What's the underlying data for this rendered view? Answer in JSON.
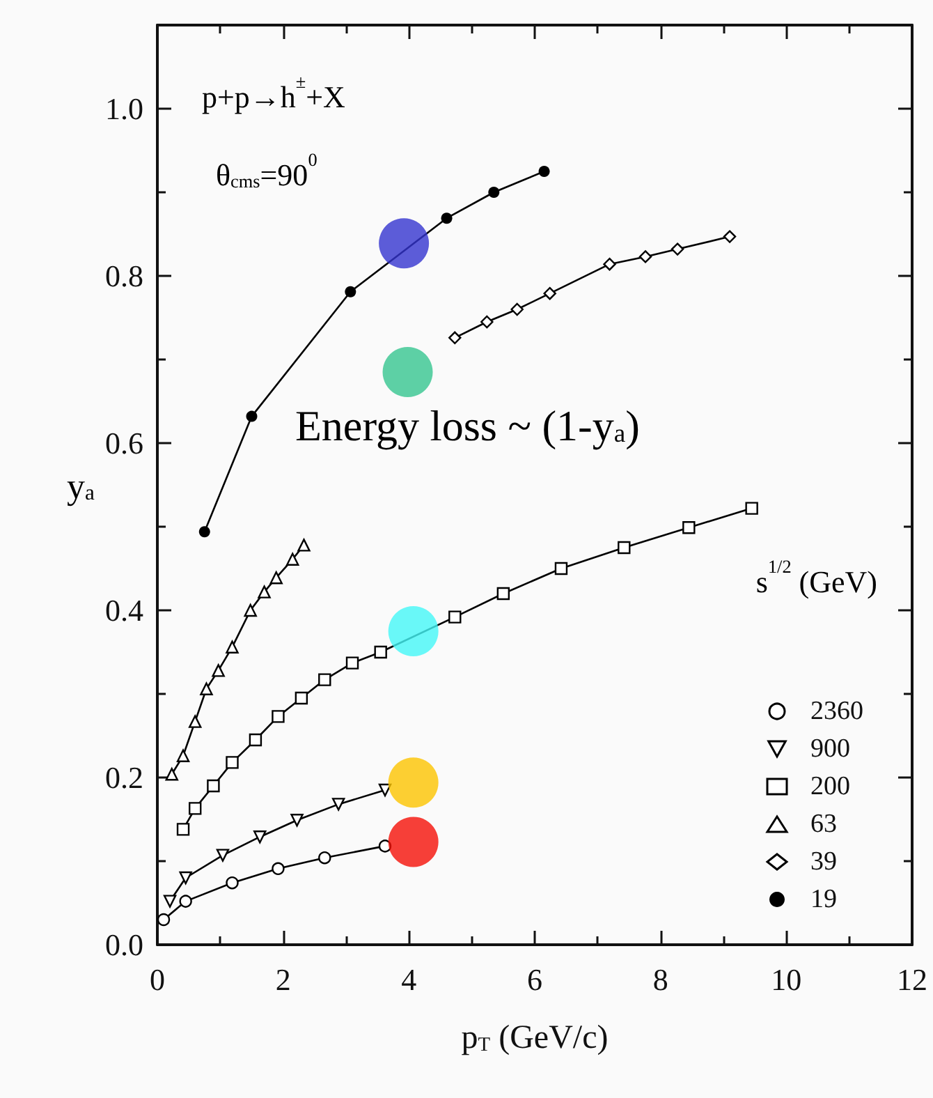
{
  "chart_data": {
    "type": "line",
    "xlabel": "p$_{T}$ (GeV/c)",
    "ylabel": "y$_{a}$",
    "legend_title": "s$^{1/2}$ (GeV)",
    "legend": "bottom right",
    "grid": false,
    "line_style": "solid",
    "annotations": [
      "p+p→h$^{±}$+X",
      "θ$_{cms}$=90$^{0}$",
      "Energy loss ~ (1-y$_{a}$)"
    ],
    "xlim": [
      0,
      12
    ],
    "xticks": [
      0,
      2,
      4,
      6,
      8,
      10,
      12
    ],
    "ylim": [
      0,
      1.1
    ],
    "yticks": [
      {
        "value": 0,
        "label": "0.0"
      },
      {
        "value": 0.2,
        "label": "0.2"
      },
      {
        "value": 0.4,
        "label": "0.4"
      },
      {
        "value": 0.6,
        "label": "0.6"
      },
      {
        "value": 0.8,
        "label": "0.8"
      },
      {
        "value": 1,
        "label": "1.0"
      }
    ],
    "series": [
      {
        "name": "2360",
        "color": "#000000",
        "marker": "circle",
        "x": [
          0.1,
          0.45,
          1.19,
          1.92,
          2.66,
          3.62
        ],
        "values": [
          0.03,
          0.052,
          0.074,
          0.091,
          0.104,
          0.118
        ]
      },
      {
        "name": "900",
        "color": "#000000",
        "marker": "triangle-down",
        "x": [
          0.2,
          0.45,
          1.04,
          1.63,
          2.22,
          2.88,
          3.62
        ],
        "values": [
          0.052,
          0.08,
          0.107,
          0.129,
          0.149,
          0.168,
          0.185
        ]
      },
      {
        "name": "200",
        "color": "#000000",
        "marker": "square",
        "x": [
          0.41,
          0.6,
          0.89,
          1.19,
          1.56,
          1.92,
          2.29,
          2.66,
          3.1,
          3.55,
          4.73,
          5.5,
          6.42,
          7.42,
          8.45,
          9.45
        ],
        "values": [
          0.138,
          0.163,
          0.19,
          0.218,
          0.245,
          0.273,
          0.295,
          0.317,
          0.337,
          0.35,
          0.392,
          0.42,
          0.45,
          0.475,
          0.499,
          0.522
        ]
      },
      {
        "name": "63",
        "color": "#000000",
        "marker": "triangle",
        "x": [
          0.23,
          0.41,
          0.6,
          0.78,
          0.97,
          1.19,
          1.48,
          1.7,
          1.89,
          2.15,
          2.33
        ],
        "values": [
          0.204,
          0.226,
          0.267,
          0.306,
          0.328,
          0.356,
          0.4,
          0.422,
          0.439,
          0.461,
          0.478
        ]
      },
      {
        "name": "39",
        "color": "#000000",
        "marker": "diamond",
        "x": [
          4.73,
          5.24,
          5.72,
          6.24,
          7.19,
          7.76,
          8.27,
          9.1
        ],
        "values": [
          0.726,
          0.745,
          0.76,
          0.779,
          0.814,
          0.823,
          0.832,
          0.847
        ]
      },
      {
        "name": "19",
        "color": "#000000",
        "marker": "filled-circle",
        "x": [
          0.75,
          1.5,
          3.07,
          4.6,
          5.35,
          6.15
        ],
        "values": [
          0.494,
          0.632,
          0.781,
          0.869,
          0.9,
          0.925
        ]
      },
      {
        "type": "scatter",
        "marker": "filled-circle",
        "x": [
          3.92,
          3.98,
          4.07,
          4.07,
          4.07
        ],
        "values": [
          0.839,
          0.685,
          0.375,
          0.194,
          0.123
        ],
        "colors": [
          "#3535d0",
          "#36c690",
          "#45f7f7",
          "#fdc400",
          "#f51008"
        ]
      }
    ]
  }
}
